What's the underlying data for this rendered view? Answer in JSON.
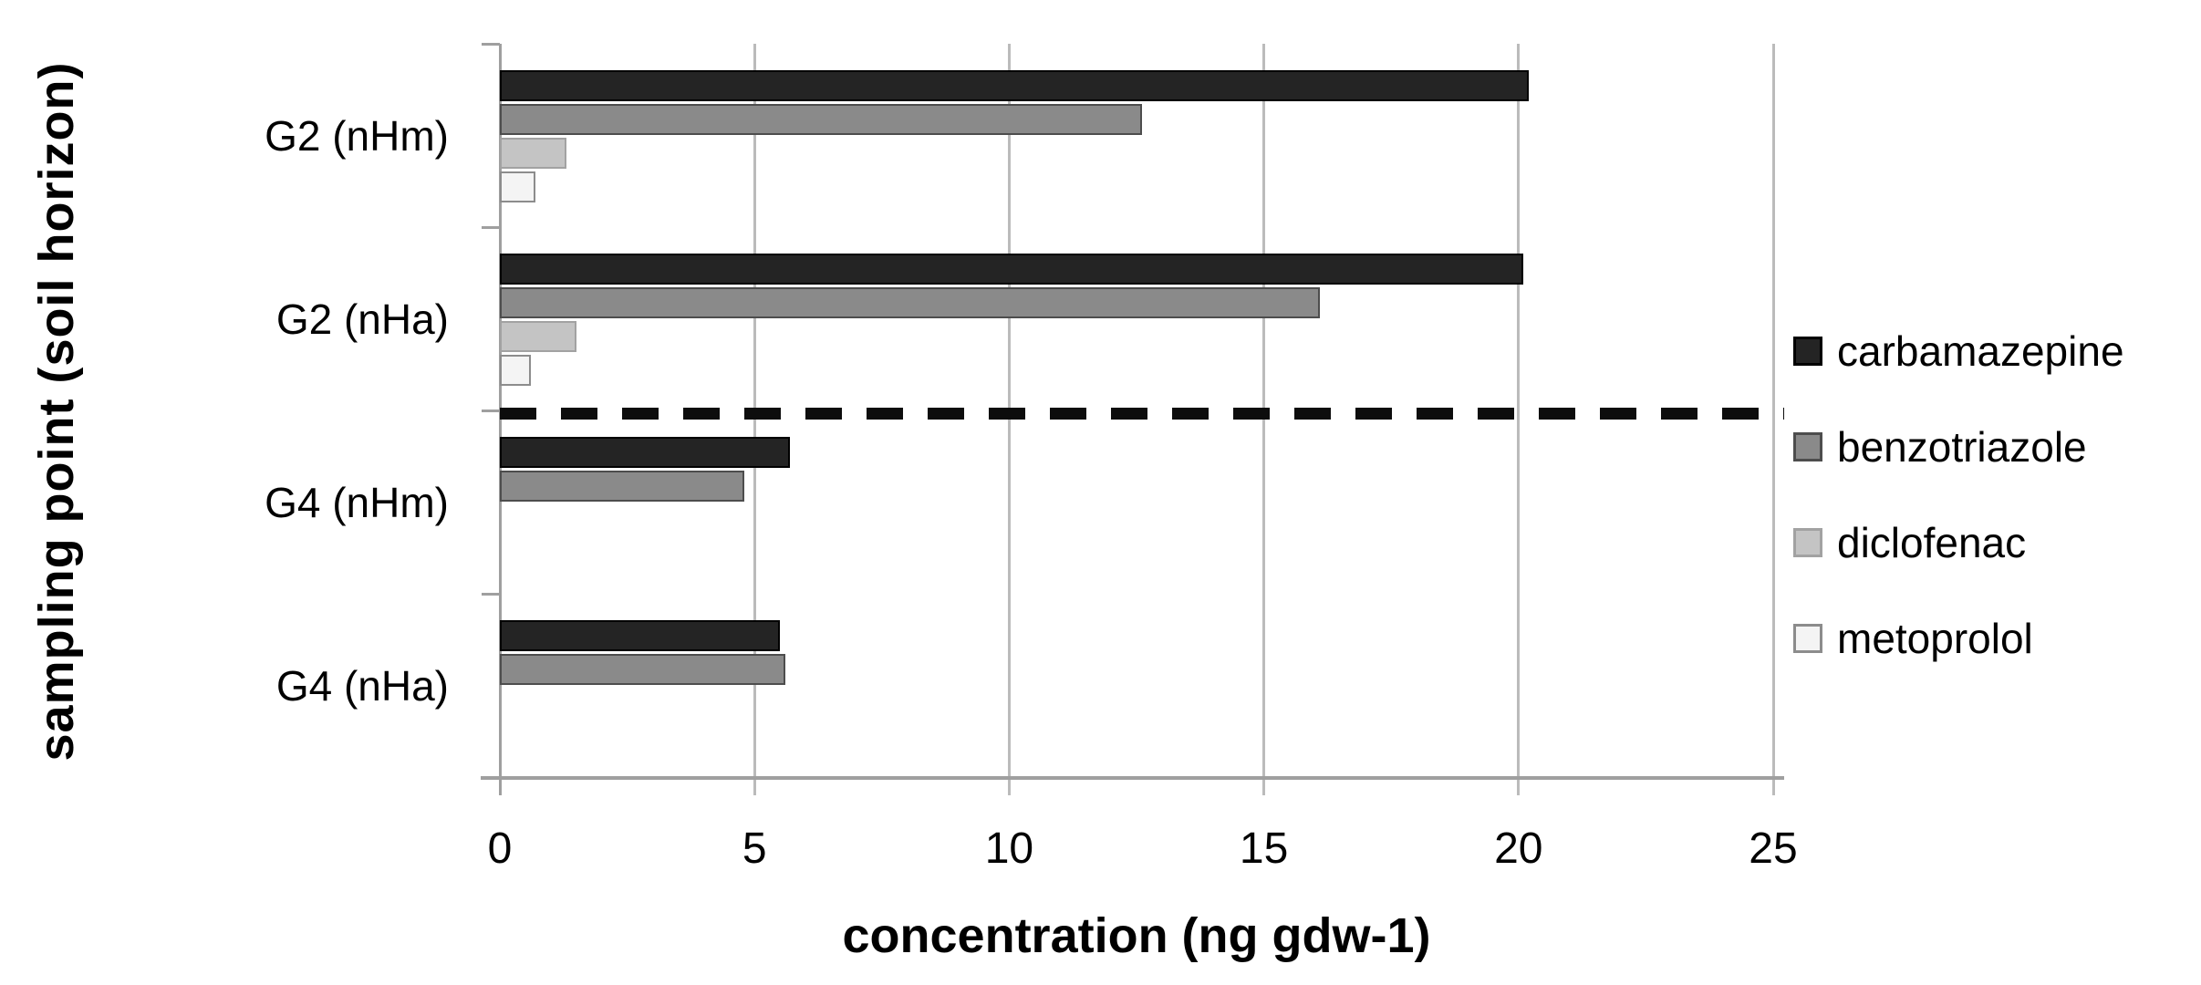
{
  "figure": {
    "background": "#ffffff",
    "x_axis_title": "concentration (ng gdw-1)",
    "y_axis_title": "sampling point (soil horizon)"
  },
  "chart_data": {
    "type": "bar",
    "orientation": "horizontal",
    "title": "",
    "xlabel": "concentration (ng gdw-1)",
    "ylabel": "sampling point (soil horizon)",
    "categories": [
      "G2 (nHm)",
      "G2 (nHa)",
      "G4 (nHm)",
      "G4 (nHa)"
    ],
    "x_ticks": [
      0,
      5,
      10,
      15,
      20,
      25
    ],
    "xlim": [
      0,
      25
    ],
    "grid": true,
    "legend_position": "right",
    "series": [
      {
        "name": "carbamazepine",
        "color": "#242424",
        "border_color": "#000000",
        "values": [
          20.2,
          20.1,
          5.7,
          5.5
        ]
      },
      {
        "name": "benzotriazole",
        "color": "#8a8a8a",
        "border_color": "#4d4d4d",
        "values": [
          12.6,
          16.1,
          4.8,
          5.6
        ]
      },
      {
        "name": "diclofenac",
        "color": "#c4c4c4",
        "border_color": "#a2a2a2",
        "values": [
          1.3,
          1.5,
          0,
          0
        ]
      },
      {
        "name": "metoprolol",
        "color": "#f4f4f4",
        "border_color": "#8c8c8c",
        "values": [
          0.7,
          0.6,
          0,
          0
        ]
      }
    ],
    "annotations": [
      {
        "type": "dashed-separator-line",
        "between_categories": [
          "G2 (nHa)",
          "G4 (nHm)"
        ],
        "color": "#0d0d0d"
      }
    ],
    "colors": {
      "gridline": "#bbbbbb",
      "axis": "#9f9f9f",
      "text": "#000000"
    }
  }
}
